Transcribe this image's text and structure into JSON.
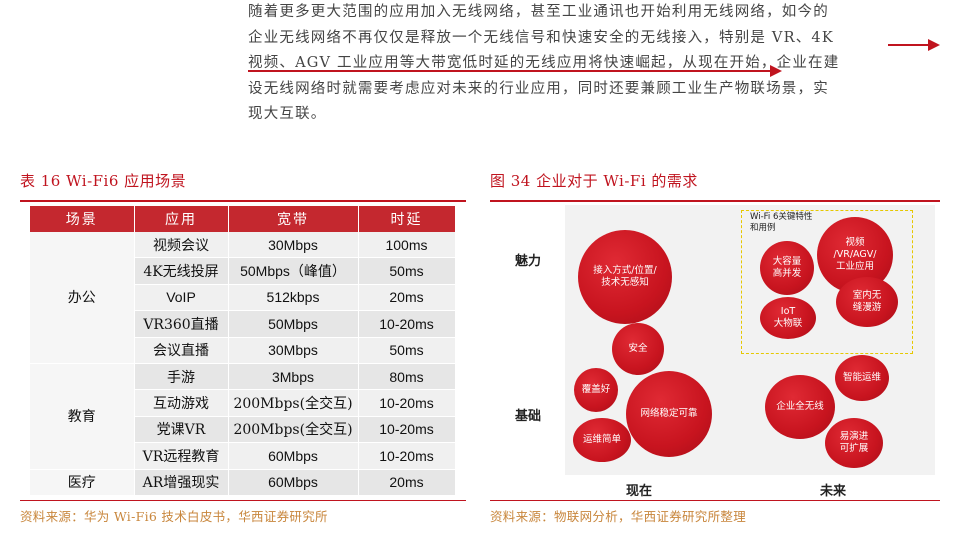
{
  "paragraph": {
    "lines": [
      "随着更多更大范围的应用加入无线网络，甚至工业通讯也开始利用无线网络，如今的",
      "企业无线网络不再仅仅是释放一个无线信号和快速安全的无线接入，特别是 VR、4K",
      "视频、AGV 工业应用等大带宽低时延的无线应用将快速崛起，从现在开始，企业在建",
      "设无线网络时就需要考虑应对未来的行业应用，同时还要兼顾工业生产物联场景，实",
      "现大互联。"
    ]
  },
  "table_caption": "表 16 Wi-Fi6 应用场景",
  "table": {
    "headers": [
      "场景",
      "应用",
      "宽带",
      "时延"
    ],
    "groups": [
      {
        "scene": "办公",
        "rows": [
          {
            "app": "视频会议",
            "bw": "30Mbps",
            "lat": "100ms"
          },
          {
            "app": "4K无线投屏",
            "bw": "50Mbps（峰值）",
            "lat": "50ms"
          },
          {
            "app": "VoIP",
            "bw": "512kbps",
            "lat": "20ms"
          },
          {
            "app": "VR360直播",
            "bw": "50Mbps",
            "lat": "10-20ms"
          },
          {
            "app": "会议直播",
            "bw": "30Mbps",
            "lat": "50ms"
          }
        ]
      },
      {
        "scene": "教育",
        "rows": [
          {
            "app": "手游",
            "bw": "3Mbps",
            "lat": "80ms"
          },
          {
            "app": "互动游戏",
            "bw": "200Mbps(全交互)",
            "lat": "10-20ms"
          },
          {
            "app": "党课VR",
            "bw": "200Mbps(全交互)",
            "lat": "10-20ms"
          },
          {
            "app": "VR远程教育",
            "bw": "60Mbps",
            "lat": "10-20ms"
          }
        ]
      },
      {
        "scene": "医疗",
        "rows": [
          {
            "app": "AR增强现实",
            "bw": "60Mbps",
            "lat": "20ms"
          }
        ]
      }
    ]
  },
  "table_source": "资料来源：华为 Wi-Fi6 技术白皮书，华西证券研究所",
  "figure_caption": "图 34   企业对于 Wi-Fi 的需求",
  "figure": {
    "y_labels": {
      "top": "魅力",
      "bottom": "基础"
    },
    "x_labels": {
      "left": "现在",
      "right": "未来"
    },
    "key_box_title": "Wi-Fi 6关键特性\n和用例",
    "bubbles": [
      {
        "id": "access",
        "label": "接入方式/位置/\n技术无感知"
      },
      {
        "id": "security",
        "label": "安全"
      },
      {
        "id": "coverage",
        "label": "覆盖好"
      },
      {
        "id": "stable",
        "label": "网络稳定可靠"
      },
      {
        "id": "ops-simple",
        "label": "运维简单"
      },
      {
        "id": "video",
        "label": "视频\n/VR/AGV/\n工业应用"
      },
      {
        "id": "capacity",
        "label": "大容量\n高并发"
      },
      {
        "id": "iot",
        "label": "IoT\n大物联"
      },
      {
        "id": "roaming",
        "label": "室内无\n缝漫游"
      },
      {
        "id": "enterprise",
        "label": "企业全无线"
      },
      {
        "id": "smart-ops",
        "label": "智能运维"
      },
      {
        "id": "evolve",
        "label": "易演进\n可扩展"
      }
    ]
  },
  "figure_source": "资料来源：物联网分析，华西证券研究所整理",
  "colors": {
    "accent": "#c0141f",
    "header_bg": "#c4282f",
    "source_text": "#c8863c",
    "key_box_border": "#e6c800"
  }
}
